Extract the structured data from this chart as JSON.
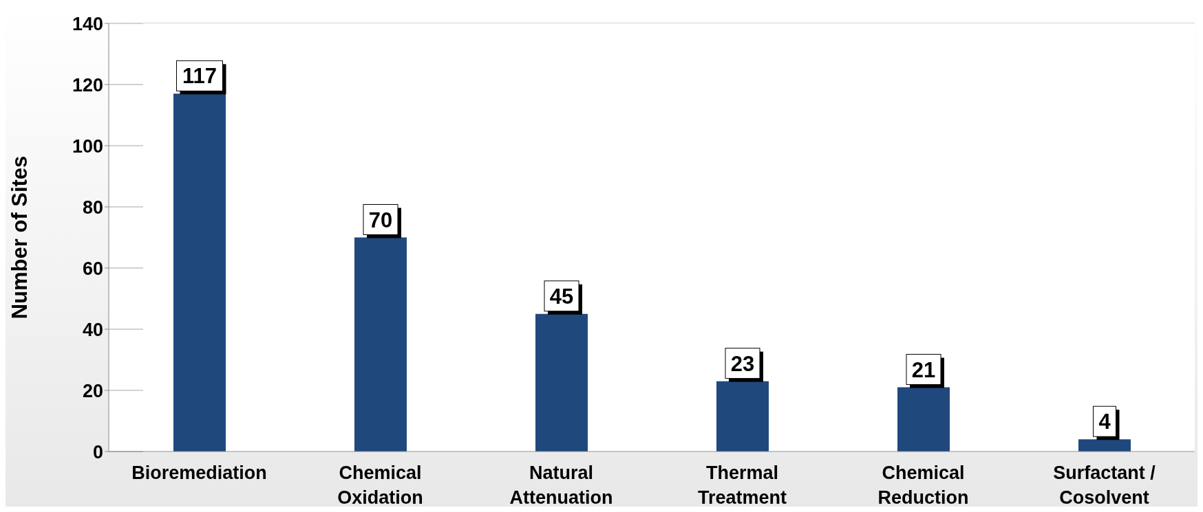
{
  "chart_data": {
    "type": "bar",
    "ylabel": "Number of Sites",
    "categories": [
      "Bioremediation",
      "Chemical Oxidation",
      "Natural Attenuation",
      "Thermal Treatment",
      "Chemical Reduction",
      "Surfactant / Cosolvent"
    ],
    "values": [
      117,
      70,
      45,
      23,
      21,
      4
    ],
    "color": "#1f497d",
    "ylim": [
      0,
      140
    ],
    "yticks": [
      0,
      20,
      40,
      60,
      80,
      100,
      120,
      140
    ],
    "grid": "y",
    "data_labels": true
  }
}
